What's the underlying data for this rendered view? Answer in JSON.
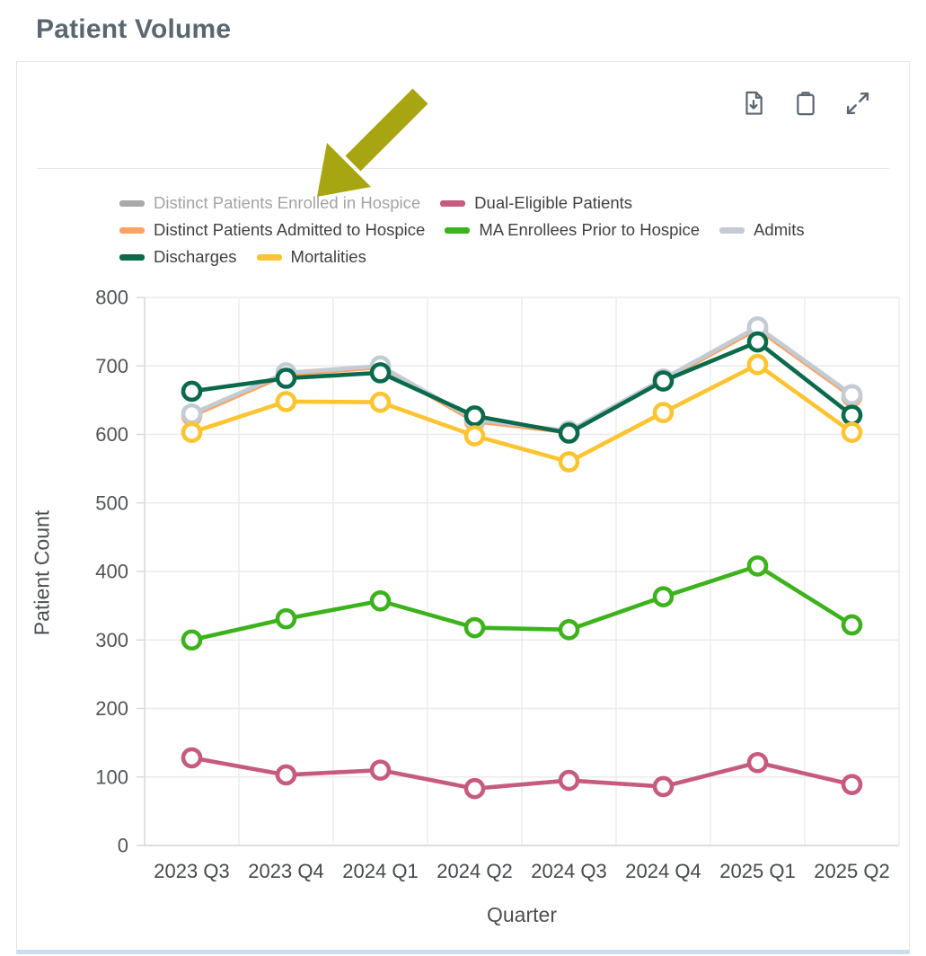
{
  "page": {
    "title": "Patient Volume"
  },
  "toolbar": {
    "icons": [
      {
        "name": "download-icon"
      },
      {
        "name": "clipboard-icon"
      },
      {
        "name": "expand-icon"
      }
    ]
  },
  "colors": {
    "title": "#5b6770",
    "icon": "#5c6670",
    "arrow": "#a8a512",
    "grid": "#ebebeb",
    "axis_line": "#d4d8db",
    "tick_text": "#515457",
    "disabled_legend_text": "#a3a4a6"
  },
  "legend": {
    "rows": [
      [
        {
          "label": "Distinct Patients Enrolled in Hospice",
          "color": "#a9a9ab",
          "disabled": true
        },
        {
          "label": "Dual-Eligible Patients",
          "color": "#c65b7d",
          "disabled": false
        }
      ],
      [
        {
          "label": "Distinct Patients Admitted to Hospice",
          "color": "#f9a365",
          "disabled": false
        },
        {
          "label": "MA Enrollees Prior to Hospice",
          "color": "#3cb31c",
          "disabled": false
        },
        {
          "label": "Admits",
          "color": "#c3ccd4",
          "disabled": false
        }
      ],
      [
        {
          "label": "Discharges",
          "color": "#0b6a4c",
          "disabled": false
        },
        {
          "label": "Mortalities",
          "color": "#fcc430",
          "disabled": false
        }
      ]
    ]
  },
  "annotation": {
    "type": "arrow",
    "color": "#a8a512",
    "points_to": "Distinct Patients Enrolled in Hospice"
  },
  "chart_data": {
    "type": "line",
    "title": "Patient Volume",
    "x": [
      "2023 Q3",
      "2023 Q4",
      "2024 Q1",
      "2024 Q2",
      "2024 Q3",
      "2024 Q4",
      "2025 Q1",
      "2025 Q2"
    ],
    "series": [
      {
        "name": "Dual-Eligible Patients",
        "color": "#c65b7d",
        "values": [
          128,
          103,
          110,
          83,
          95,
          86,
          121,
          89
        ]
      },
      {
        "name": "Distinct Patients Admitted to Hospice",
        "color": "#f9a365",
        "values": [
          627,
          687,
          698,
          619,
          603,
          679,
          754,
          655
        ]
      },
      {
        "name": "MA Enrollees Prior to Hospice",
        "color": "#3cb31c",
        "values": [
          300,
          331,
          357,
          318,
          315,
          363,
          408,
          322
        ]
      },
      {
        "name": "Admits",
        "color": "#c3ccd4",
        "values": [
          630,
          690,
          700,
          622,
          605,
          681,
          757,
          658
        ]
      },
      {
        "name": "Discharges",
        "color": "#0b6a4c",
        "values": [
          663,
          682,
          690,
          627,
          602,
          678,
          735,
          628
        ]
      },
      {
        "name": "Mortalities",
        "color": "#fcc430",
        "values": [
          603,
          648,
          647,
          598,
          560,
          632,
          702,
          603
        ]
      }
    ],
    "hidden_series": [
      "Distinct Patients Enrolled in Hospice"
    ],
    "xlabel": "Quarter",
    "ylabel": "Patient Count",
    "ylim": [
      0,
      800
    ],
    "ytick_step": 100,
    "grid": true,
    "legend_position": "top"
  }
}
